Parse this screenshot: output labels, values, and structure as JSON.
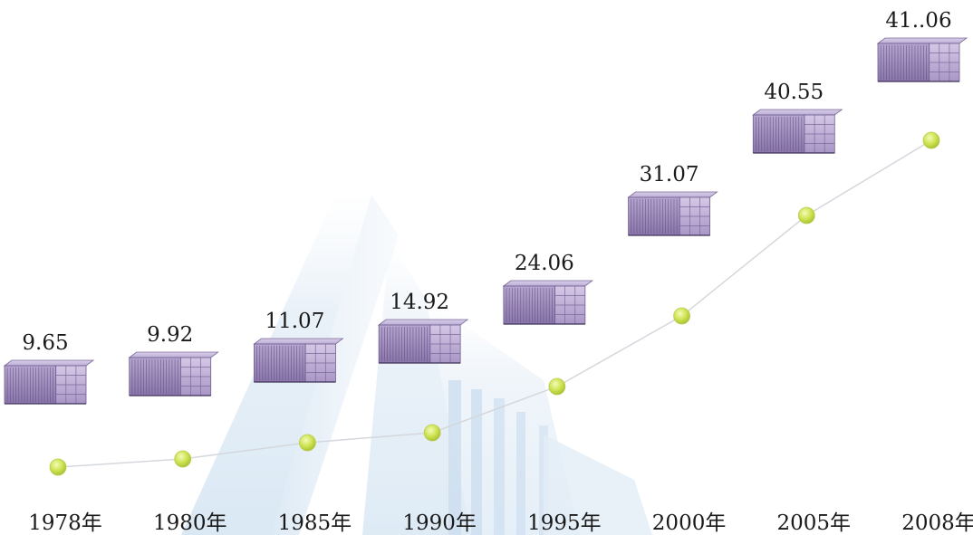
{
  "chart_data": {
    "type": "line",
    "categories": [
      "1978年",
      "1980年",
      "1985年",
      "1990年",
      "1995年",
      "2000年",
      "2005年",
      "2008年"
    ],
    "values": [
      9.65,
      9.92,
      11.07,
      14.92,
      24.06,
      31.07,
      40.55,
      41.06
    ],
    "value_labels": [
      "9.65",
      "9.92",
      "11.07",
      "14.92",
      "24.06",
      "31.07",
      "40.55",
      "41..06"
    ],
    "title": "",
    "xlabel": "",
    "ylabel": "",
    "grid": false,
    "legend": "none",
    "colors": {
      "point": "#c8e04a",
      "line": "#d4d8dc",
      "container": "#9a86b8",
      "background_building": "#dce9f4"
    },
    "mark_icon": "shipping-container-icon"
  }
}
